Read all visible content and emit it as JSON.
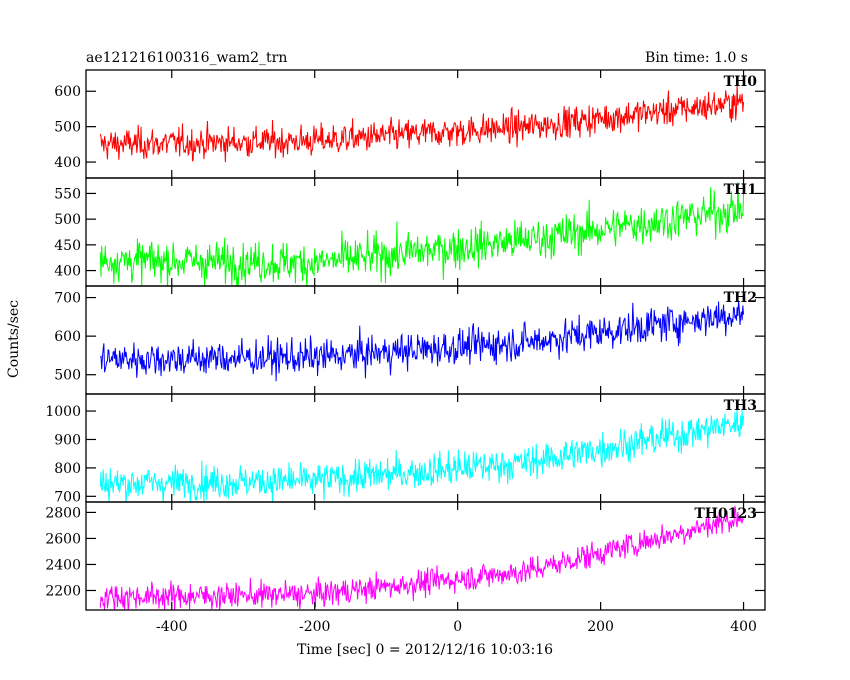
{
  "chart_data": {
    "type": "line",
    "title": "ae121216100316_wam2_trn",
    "subtitle": "Bin time: 1.0 s",
    "xlabel": "Time [sec] 0 = 2012/12/16 10:03:16",
    "ylabel": "Counts/sec",
    "xlim": [
      -520,
      430
    ],
    "x_ticks": [
      -400,
      -200,
      0,
      200,
      400
    ],
    "x_step": 1,
    "x_range": [
      -500,
      400
    ],
    "panels": [
      {
        "name": "TH0",
        "color": "#ff0000",
        "ylim": [
          355,
          660
        ],
        "y_ticks": [
          400,
          500,
          600
        ],
        "trend": [
          [
            -500,
            450
          ],
          [
            -200,
            460
          ],
          [
            100,
            500
          ],
          [
            400,
            570
          ]
        ],
        "noise": 22
      },
      {
        "name": "TH1",
        "color": "#00ff00",
        "ylim": [
          370,
          580
        ],
        "y_ticks": [
          400,
          450,
          500,
          550
        ],
        "trend": [
          [
            -500,
            420
          ],
          [
            -200,
            415
          ],
          [
            100,
            460
          ],
          [
            400,
            520
          ]
        ],
        "noise": 20
      },
      {
        "name": "TH2",
        "color": "#0000ff",
        "ylim": [
          450,
          730
        ],
        "y_ticks": [
          500,
          600,
          700
        ],
        "trend": [
          [
            -500,
            540
          ],
          [
            -200,
            545
          ],
          [
            100,
            585
          ],
          [
            400,
            660
          ]
        ],
        "noise": 23
      },
      {
        "name": "TH3",
        "color": "#00ffff",
        "ylim": [
          680,
          1060
        ],
        "y_ticks": [
          700,
          800,
          900,
          1000
        ],
        "trend": [
          [
            -500,
            745
          ],
          [
            -200,
            755
          ],
          [
            100,
            820
          ],
          [
            400,
            960
          ]
        ],
        "noise": 30
      },
      {
        "name": "TH0123",
        "color": "#ff00ff",
        "ylim": [
          2050,
          2880
        ],
        "y_ticks": [
          2200,
          2400,
          2600,
          2800
        ],
        "trend": [
          [
            -500,
            2150
          ],
          [
            -200,
            2170
          ],
          [
            100,
            2350
          ],
          [
            400,
            2770
          ]
        ],
        "noise": 50
      }
    ]
  }
}
